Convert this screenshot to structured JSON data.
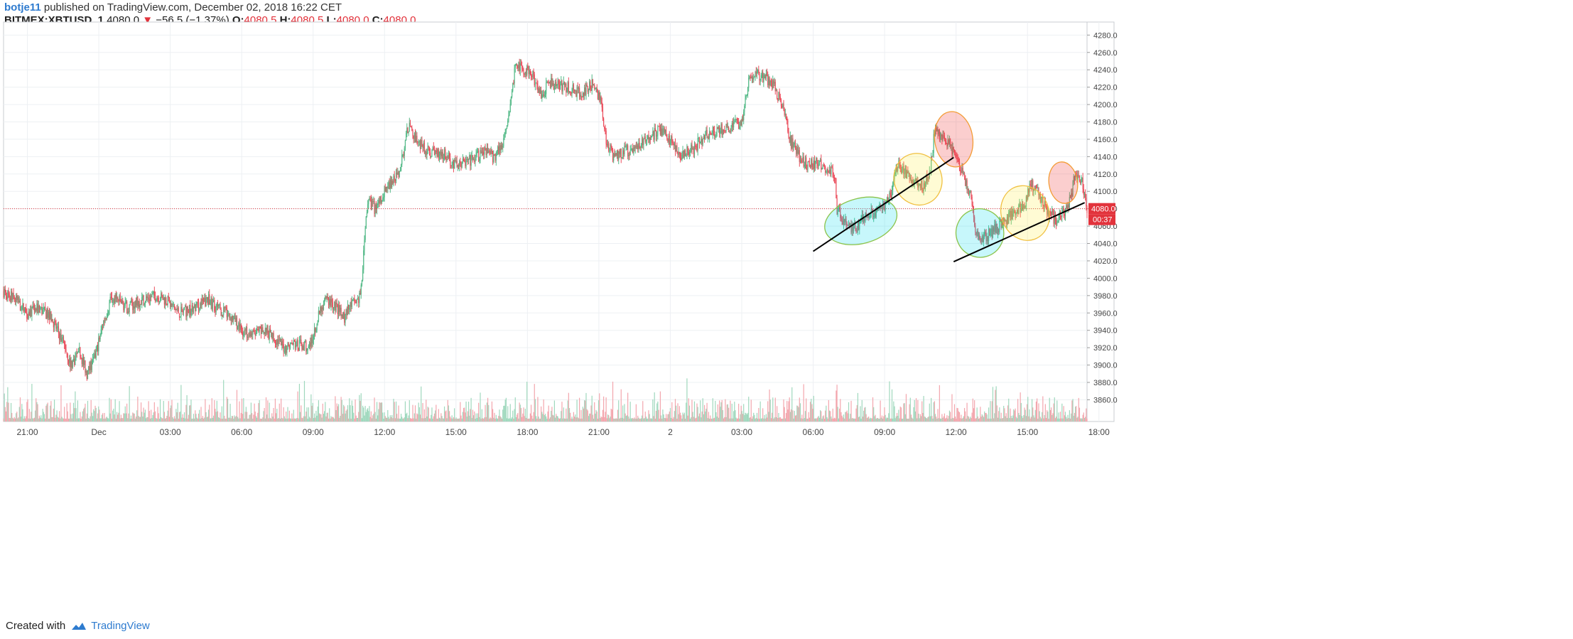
{
  "header": {
    "publisher": "botje11",
    "published_text": "published on TradingView.com, December 02, 2018 16:22 CET",
    "symbol": "BITMEX:XBTUSD, 1",
    "last": "4080.0",
    "down_arrow": "▼",
    "change": "−56.5 (−1.37%)",
    "o_label": "O:",
    "o_value": "4080.5",
    "h_label": "H:",
    "h_value": "4080.5",
    "l_label": "L:",
    "l_value": "4080.0",
    "c_label": "C:",
    "c_value": "4080.0"
  },
  "footer": {
    "created_with": "Created with",
    "brand": "TradingView"
  },
  "colors": {
    "up": "#53b987",
    "down": "#eb4d5c",
    "price_line": "#e2333c",
    "grid": "#edf0f3"
  },
  "chart_data": {
    "type": "line",
    "series_kind": "candlestick-1min",
    "ylim": [
      3835,
      4295
    ],
    "y_ticks": [
      3860,
      3880,
      3900,
      3920,
      3940,
      3960,
      3980,
      4000,
      4020,
      4040,
      4060,
      4080,
      4100,
      4120,
      4140,
      4160,
      4180,
      4200,
      4220,
      4240,
      4260,
      4280
    ],
    "x_range_hours": [
      -4,
      41.5
    ],
    "x_ticks": [
      {
        "label": "21:00",
        "h": -3
      },
      {
        "label": "Dec",
        "h": 0
      },
      {
        "label": "03:00",
        "h": 3
      },
      {
        "label": "06:00",
        "h": 6
      },
      {
        "label": "09:00",
        "h": 9
      },
      {
        "label": "12:00",
        "h": 12
      },
      {
        "label": "15:00",
        "h": 15
      },
      {
        "label": "18:00",
        "h": 18
      },
      {
        "label": "21:00",
        "h": 21
      },
      {
        "label": "2",
        "h": 24
      },
      {
        "label": "03:00",
        "h": 27
      },
      {
        "label": "06:00",
        "h": 30
      },
      {
        "label": "09:00",
        "h": 33
      },
      {
        "label": "12:00",
        "h": 36
      },
      {
        "label": "15:00",
        "h": 39
      },
      {
        "label": "18:00",
        "h": 42
      }
    ],
    "price_path": [
      [
        -4,
        3985
      ],
      [
        -3.5,
        3975
      ],
      [
        -3,
        3960
      ],
      [
        -2.5,
        3965
      ],
      [
        -2,
        3955
      ],
      [
        -1.4,
        3920
      ],
      [
        -1.2,
        3900
      ],
      [
        -0.8,
        3915
      ],
      [
        -0.5,
        3890
      ],
      [
        -0.2,
        3905
      ],
      [
        0.2,
        3950
      ],
      [
        0.5,
        3975
      ],
      [
        0.8,
        3975
      ],
      [
        1.2,
        3965
      ],
      [
        1.8,
        3975
      ],
      [
        2.4,
        3980
      ],
      [
        2.8,
        3975
      ],
      [
        3.4,
        3960
      ],
      [
        4.0,
        3965
      ],
      [
        4.6,
        3975
      ],
      [
        5.0,
        3965
      ],
      [
        5.6,
        3955
      ],
      [
        6.0,
        3940
      ],
      [
        6.5,
        3935
      ],
      [
        7.0,
        3940
      ],
      [
        7.4,
        3930
      ],
      [
        7.8,
        3920
      ],
      [
        8.2,
        3925
      ],
      [
        8.8,
        3920
      ],
      [
        9.0,
        3935
      ],
      [
        9.3,
        3965
      ],
      [
        9.6,
        3975
      ],
      [
        10.0,
        3965
      ],
      [
        10.3,
        3955
      ],
      [
        10.6,
        3970
      ],
      [
        10.9,
        3975
      ],
      [
        11.0,
        3985
      ],
      [
        11.2,
        4060
      ],
      [
        11.3,
        4090
      ],
      [
        11.6,
        4080
      ],
      [
        12.0,
        4100
      ],
      [
        12.3,
        4110
      ],
      [
        12.6,
        4120
      ],
      [
        13.0,
        4175
      ],
      [
        13.3,
        4160
      ],
      [
        13.8,
        4145
      ],
      [
        14.4,
        4145
      ],
      [
        15.0,
        4130
      ],
      [
        15.6,
        4135
      ],
      [
        16.2,
        4145
      ],
      [
        16.6,
        4140
      ],
      [
        17.0,
        4160
      ],
      [
        17.3,
        4200
      ],
      [
        17.5,
        4250
      ],
      [
        17.8,
        4240
      ],
      [
        18.2,
        4235
      ],
      [
        18.5,
        4210
      ],
      [
        19.0,
        4225
      ],
      [
        19.6,
        4220
      ],
      [
        20.0,
        4215
      ],
      [
        20.4,
        4215
      ],
      [
        20.8,
        4225
      ],
      [
        21.1,
        4200
      ],
      [
        21.3,
        4160
      ],
      [
        21.6,
        4140
      ],
      [
        22.0,
        4145
      ],
      [
        22.5,
        4150
      ],
      [
        23.0,
        4160
      ],
      [
        23.5,
        4170
      ],
      [
        24.0,
        4160
      ],
      [
        24.4,
        4140
      ],
      [
        25.0,
        4150
      ],
      [
        25.5,
        4165
      ],
      [
        26.0,
        4170
      ],
      [
        26.6,
        4175
      ],
      [
        27.0,
        4180
      ],
      [
        27.3,
        4230
      ],
      [
        27.6,
        4235
      ],
      [
        28.0,
        4230
      ],
      [
        28.4,
        4220
      ],
      [
        28.8,
        4190
      ],
      [
        29.0,
        4160
      ],
      [
        29.4,
        4140
      ],
      [
        29.8,
        4130
      ],
      [
        30.2,
        4135
      ],
      [
        30.6,
        4125
      ],
      [
        30.9,
        4120
      ],
      [
        31.0,
        4080
      ],
      [
        31.3,
        4065
      ],
      [
        31.6,
        4055
      ],
      [
        32.0,
        4065
      ],
      [
        32.5,
        4075
      ],
      [
        32.9,
        4080
      ],
      [
        33.3,
        4100
      ],
      [
        33.5,
        4130
      ],
      [
        33.8,
        4125
      ],
      [
        34.2,
        4110
      ],
      [
        34.6,
        4105
      ],
      [
        34.9,
        4120
      ],
      [
        35.1,
        4170
      ],
      [
        35.4,
        4165
      ],
      [
        35.7,
        4155
      ],
      [
        36.0,
        4140
      ],
      [
        36.3,
        4120
      ],
      [
        36.6,
        4095
      ],
      [
        36.8,
        4060
      ],
      [
        37.0,
        4045
      ],
      [
        37.4,
        4050
      ],
      [
        37.8,
        4060
      ],
      [
        38.2,
        4070
      ],
      [
        38.6,
        4080
      ],
      [
        38.9,
        4085
      ],
      [
        39.1,
        4110
      ],
      [
        39.4,
        4100
      ],
      [
        39.8,
        4080
      ],
      [
        40.2,
        4065
      ],
      [
        40.5,
        4075
      ],
      [
        40.8,
        4090
      ],
      [
        41.0,
        4120
      ],
      [
        41.3,
        4110
      ],
      [
        41.5,
        4080
      ]
    ],
    "last_price": 4080.0,
    "price_label": "4080.0",
    "countdown_label": "00:37",
    "annotations": {
      "ellipses": [
        {
          "color": "cyan",
          "h": 32.0,
          "p": 4066,
          "rh": 1.55,
          "rp": 26,
          "angle": -15
        },
        {
          "color": "yellow",
          "h": 34.4,
          "p": 4114,
          "rh": 1.0,
          "rp": 30,
          "angle": -20
        },
        {
          "color": "red",
          "h": 35.9,
          "p": 4160,
          "rh": 0.8,
          "rp": 32,
          "angle": -8
        },
        {
          "color": "cyan",
          "h": 37.0,
          "p": 4052,
          "rh": 1.0,
          "rp": 28,
          "angle": -20
        },
        {
          "color": "yellow",
          "h": 38.9,
          "p": 4075,
          "rh": 1.0,
          "rp": 32,
          "angle": -20
        },
        {
          "color": "red",
          "h": 40.5,
          "p": 4110,
          "rh": 0.6,
          "rp": 24,
          "angle": -8
        }
      ],
      "trendlines": [
        {
          "h1": 30.0,
          "p1": 4031,
          "h2": 35.9,
          "p2": 4139
        },
        {
          "h1": 35.9,
          "p1": 4019,
          "h2": 41.4,
          "p2": 4087
        }
      ]
    }
  }
}
